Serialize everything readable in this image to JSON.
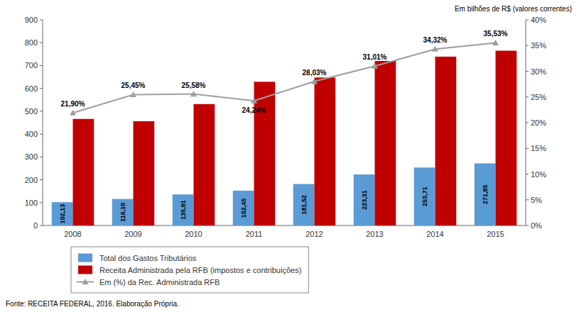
{
  "chart_data": {
    "type": "bar",
    "categories": [
      "2008",
      "2009",
      "2010",
      "2011",
      "2012",
      "2013",
      "2014",
      "2015"
    ],
    "series": [
      {
        "name": "Total dos Gastos Tributários",
        "color": "#5B9BD5",
        "values": [
          102.13,
          116.1,
          135.91,
          152.45,
          181.52,
          223.31,
          253.71,
          271.85
        ],
        "value_labels": [
          "102,13",
          "116,10",
          "135,91",
          "152,45",
          "181,52",
          "223,31",
          "253,71",
          "271,85"
        ],
        "data_labels": true
      },
      {
        "name": "Receita Administrada pela RFB (impostos e contribuições)",
        "color": "#C00000",
        "values": [
          466.3,
          456.2,
          531.3,
          628.9,
          647.6,
          720.1,
          739.0,
          765.0
        ]
      },
      {
        "name": "Em (%) da Rec. Administrada RFB",
        "color": "#9E9E9E",
        "type": "line",
        "axis": "y2",
        "marker": "triangle",
        "values": [
          21.9,
          25.45,
          25.58,
          24.24,
          28.03,
          31.01,
          34.32,
          35.53
        ],
        "value_labels": [
          "21,90%",
          "25,45%",
          "25,58%",
          "24,24%",
          "28,03%",
          "31,01%",
          "34,32%",
          "35,53%"
        ],
        "data_labels": true
      }
    ],
    "ylim": [
      0,
      900
    ],
    "yticks": [
      0,
      100,
      200,
      300,
      400,
      500,
      600,
      700,
      800,
      900
    ],
    "y2lim": [
      0,
      40
    ],
    "y2ticks": [
      {
        "value": 0,
        "label": "0%"
      },
      {
        "value": 5,
        "label": "5%"
      },
      {
        "value": 10,
        "label": "10%"
      },
      {
        "value": 15,
        "label": "15%"
      },
      {
        "value": 20,
        "label": "20%"
      },
      {
        "value": 25,
        "label": "25%"
      },
      {
        "value": 30,
        "label": "30%"
      },
      {
        "value": 35,
        "label": "35%"
      },
      {
        "value": 40,
        "label": "40%"
      }
    ],
    "annotations": [
      "Em bilhões de R$ (valores correntes)",
      "Fonte: RECEITA FEDERAL, 2016. Elaboração Própria."
    ],
    "grid": false,
    "legend": "bottom"
  }
}
